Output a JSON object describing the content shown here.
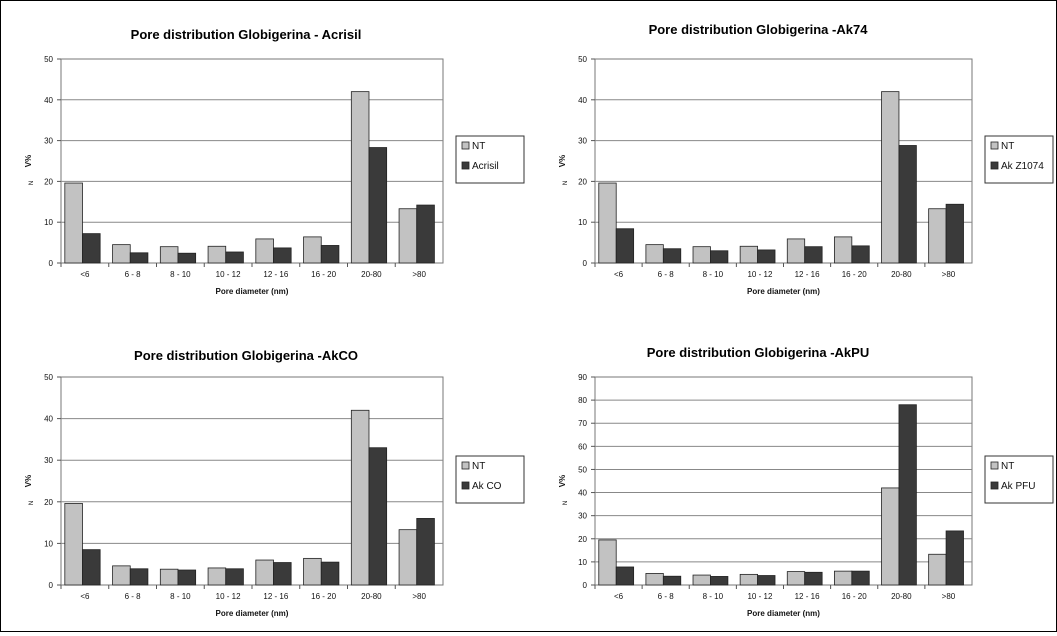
{
  "chart_data": [
    {
      "type": "bar",
      "title": "Pore distribution Globigerina - Acrisil",
      "xlabel": "Pore diameter (nm)",
      "ylabel": "V%",
      "ylabel_sub": "N",
      "ylim": [
        0,
        50
      ],
      "yticks": [
        "0",
        "10",
        "20",
        "30",
        "40",
        "50"
      ],
      "categories": [
        "<6",
        "6 - 8",
        "8 - 10",
        "10 - 12",
        "12 - 16",
        "16 - 20",
        "20-80",
        ">80"
      ],
      "legend_position": "right",
      "series": [
        {
          "name": "NT",
          "color": "#c2c2c2",
          "values": [
            19.6,
            4.5,
            4.0,
            4.1,
            5.9,
            6.4,
            42.0,
            13.3
          ]
        },
        {
          "name": "Acrisil",
          "color": "#3a3a3a",
          "values": [
            7.2,
            2.5,
            2.4,
            2.7,
            3.7,
            4.3,
            28.3,
            14.2
          ]
        }
      ]
    },
    {
      "type": "bar",
      "title": "Pore distribution Globigerina -Ak74",
      "xlabel": "Pore diameter (nm)",
      "ylabel": "V%",
      "ylabel_sub": "N",
      "ylim": [
        0,
        50
      ],
      "yticks": [
        "0",
        "10",
        "20",
        "30",
        "40",
        "50"
      ],
      "categories": [
        "<6",
        "6 - 8",
        "8 - 10",
        "10 - 12",
        "12 - 16",
        "16 - 20",
        "20-80",
        ">80"
      ],
      "legend_position": "right",
      "series": [
        {
          "name": "NT",
          "color": "#c2c2c2",
          "values": [
            19.6,
            4.5,
            4.0,
            4.1,
            5.9,
            6.4,
            42.0,
            13.3
          ]
        },
        {
          "name": "Ak Z1074",
          "color": "#3a3a3a",
          "values": [
            8.4,
            3.5,
            3.0,
            3.2,
            4.0,
            4.2,
            28.8,
            14.4
          ]
        }
      ]
    },
    {
      "type": "bar",
      "title": "Pore distribution Globigerina -AkCO",
      "xlabel": "Pore diameter (nm)",
      "ylabel": "V%",
      "ylabel_sub": "N",
      "ylim": [
        0,
        50
      ],
      "yticks": [
        "0",
        "10",
        "20",
        "30",
        "40",
        "50"
      ],
      "categories": [
        "<6",
        "6 - 8",
        "8 - 10",
        "10 - 12",
        "12 - 16",
        "16 - 20",
        "20-80",
        ">80"
      ],
      "legend_position": "right",
      "series": [
        {
          "name": "NT",
          "color": "#c2c2c2",
          "values": [
            19.6,
            4.6,
            3.8,
            4.1,
            6.0,
            6.4,
            42.0,
            13.3
          ]
        },
        {
          "name": "Ak CO",
          "color": "#3a3a3a",
          "values": [
            8.5,
            3.9,
            3.6,
            3.9,
            5.4,
            5.5,
            33.0,
            16.0
          ]
        }
      ]
    },
    {
      "type": "bar",
      "title": "Pore distribution Globigerina -AkPU",
      "xlabel": "Pore diameter (nm)",
      "ylabel": "V%",
      "ylabel_sub": "N",
      "ylim": [
        0,
        90
      ],
      "yticks": [
        "0",
        "10",
        "20",
        "30",
        "40",
        "50",
        "60",
        "70",
        "80",
        "90"
      ],
      "categories": [
        "<6",
        "6 - 8",
        "8 - 10",
        "10 - 12",
        "12 - 16",
        "16 - 20",
        "20-80",
        ">80"
      ],
      "legend_position": "right",
      "series": [
        {
          "name": "NT",
          "color": "#c2c2c2",
          "values": [
            19.5,
            5.0,
            4.3,
            4.6,
            5.8,
            6.0,
            42.0,
            13.3
          ]
        },
        {
          "name": "Ak PFU",
          "color": "#3a3a3a",
          "values": [
            7.8,
            3.8,
            3.7,
            4.1,
            5.5,
            6.0,
            78.0,
            23.4
          ]
        }
      ]
    }
  ]
}
